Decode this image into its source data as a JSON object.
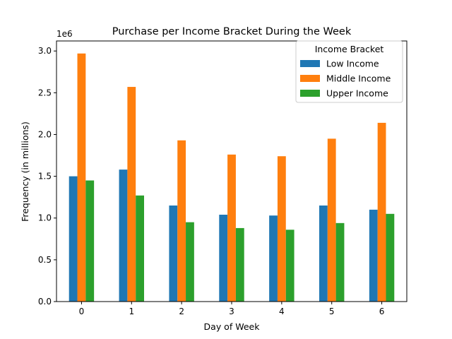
{
  "chart_data": {
    "type": "bar",
    "title": "Purchase per Income Bracket During the Week",
    "xlabel": "Day of Week",
    "ylabel": "Frequency (in millions)",
    "y_offset_label": "1e6",
    "categories": [
      "0",
      "1",
      "2",
      "3",
      "4",
      "5",
      "6"
    ],
    "ylim": [
      0,
      3.12
    ],
    "yticks": [
      0.0,
      0.5,
      1.0,
      1.5,
      2.0,
      2.5,
      3.0
    ],
    "ytick_labels": [
      "0.0",
      "0.5",
      "1.0",
      "1.5",
      "2.0",
      "2.5",
      "3.0"
    ],
    "grid": false,
    "legend": {
      "title": "Income Bracket",
      "placement": "top-right"
    },
    "series": [
      {
        "name": "Low Income",
        "color": "#1f77b4",
        "values": [
          1.5,
          1.58,
          1.15,
          1.04,
          1.03,
          1.15,
          1.1
        ]
      },
      {
        "name": "Middle Income",
        "color": "#ff7f0e",
        "values": [
          2.97,
          2.57,
          1.93,
          1.76,
          1.74,
          1.95,
          2.14
        ]
      },
      {
        "name": "Upper Income",
        "color": "#2ca02c",
        "values": [
          1.45,
          1.27,
          0.95,
          0.88,
          0.86,
          0.94,
          1.05
        ]
      }
    ]
  }
}
